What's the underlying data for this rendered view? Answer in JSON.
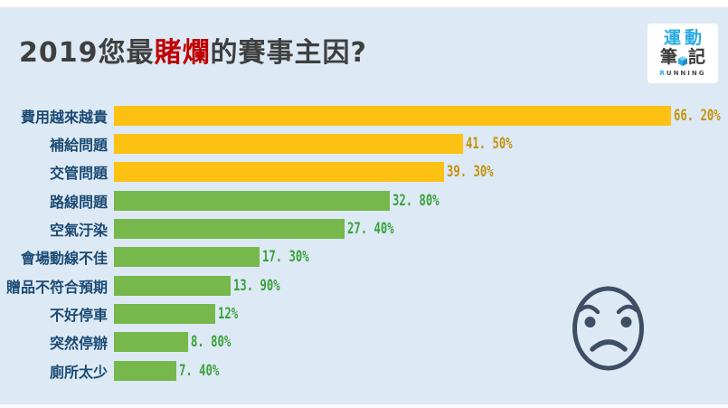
{
  "title": {
    "prefix": "2019您最",
    "highlight": "賭爛",
    "suffix": "的賽事主因?"
  },
  "logo": {
    "line1": "運動",
    "line2_left": "筆",
    "line2_right": "記",
    "caption_first": "R",
    "caption_rest": "UNNING"
  },
  "colors": {
    "background": "#dde9f4",
    "title_text": "#3f3f3f",
    "title_highlight": "#c00000",
    "category_text": "#1b4a74",
    "bar_yellow": "#fdc113",
    "bar_green": "#76b84b",
    "value_text_yellow": "#c3940b",
    "value_text_green": "#3aa33a",
    "logo_blue": "#29abe2",
    "angry_face": "#3e4e64"
  },
  "chart_data": {
    "type": "bar",
    "orientation": "horizontal",
    "title": "2019您最賭爛的賽事主因?",
    "xlabel": "",
    "ylabel": "",
    "xlim": [
      0,
      70
    ],
    "grid": false,
    "legend": false,
    "categories": [
      "費用越來越貴",
      "補給問題",
      "交管問題",
      "路線問題",
      "空氣汙染",
      "會場動線不佳",
      "贈品不符合預期",
      "不好停車",
      "突然停辦",
      "廁所太少"
    ],
    "values": [
      66.2,
      41.5,
      39.3,
      32.8,
      27.4,
      17.3,
      13.9,
      12,
      8.8,
      7.4
    ],
    "value_labels": [
      "66. 20%",
      "41. 50%",
      "39. 30%",
      "32. 80%",
      "27. 40%",
      "17. 30%",
      "13. 90%",
      "12%",
      "8. 80%",
      "7. 40%"
    ],
    "color_groups": [
      "yellow",
      "yellow",
      "yellow",
      "green",
      "green",
      "green",
      "green",
      "green",
      "green",
      "green"
    ]
  }
}
